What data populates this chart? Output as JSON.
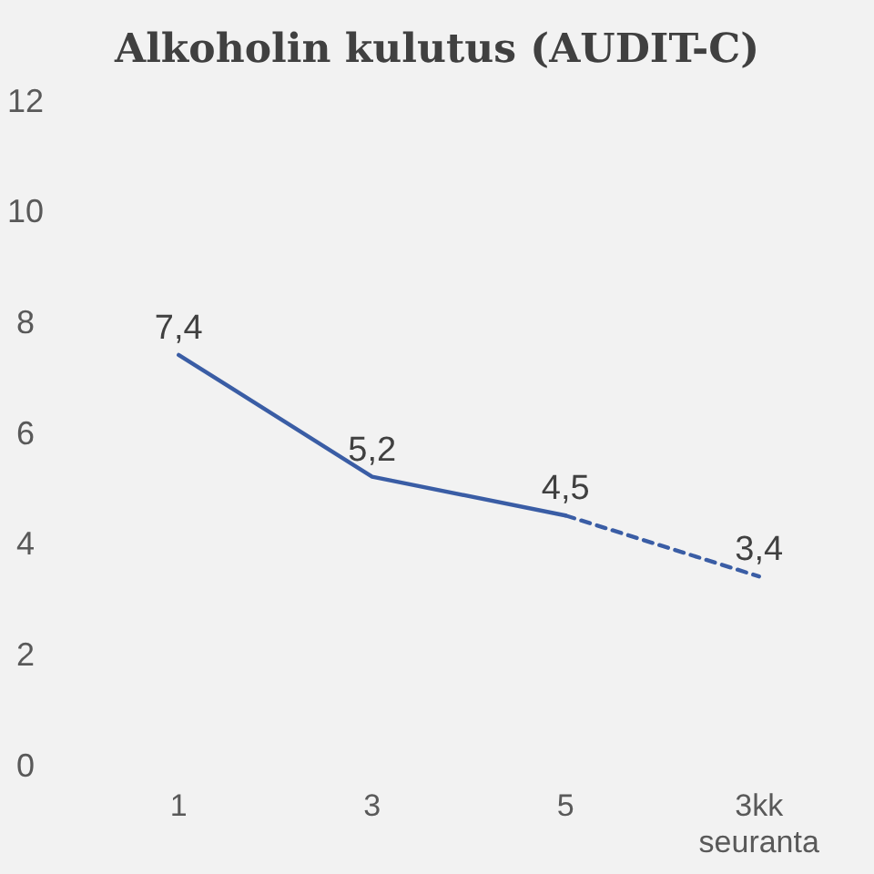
{
  "chart_data": {
    "type": "line",
    "title": "Alkoholin kulutus (AUDIT-C)",
    "categories": [
      "1",
      "3",
      "5",
      "3kk seuranta"
    ],
    "series": [
      {
        "color": "#3a5da5",
        "values": [
          7.4,
          5.2,
          4.5,
          null
        ],
        "line_style": "solid",
        "value_labels": [
          "7,4",
          "5,2",
          "4,5",
          null
        ]
      },
      {
        "color": "#3a5da5",
        "values": [
          null,
          null,
          4.5,
          3.4
        ],
        "line_style": "dashed",
        "value_labels": [
          null,
          null,
          null,
          "3,4"
        ]
      }
    ],
    "ylim": [
      0,
      12
    ],
    "yticks": [
      0,
      2,
      4,
      6,
      8,
      10,
      12
    ],
    "grid": false,
    "marker": "none"
  }
}
